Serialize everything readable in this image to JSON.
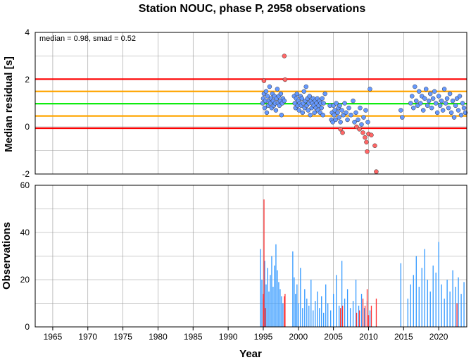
{
  "chart_data": [
    {
      "type": "scatter",
      "title": "Station NOUC, phase P, 2958 observations",
      "xlabel": "",
      "ylabel": "Median residual [s]",
      "xlim": [
        1962.5,
        2024
      ],
      "ylim": [
        -2,
        4
      ],
      "x_ticks": [
        1965,
        1970,
        1975,
        1980,
        1985,
        1990,
        1995,
        2000,
        2005,
        2010,
        2015,
        2020
      ],
      "y_ticks": [
        -2,
        0,
        2,
        4
      ],
      "grid": true,
      "annotation": "median = 0.98, smad = 0.52",
      "reference_lines": [
        {
          "y": 0.98,
          "color": "#00ee00"
        },
        {
          "y": 1.5,
          "color": "#ffa500"
        },
        {
          "y": 0.46,
          "color": "#ffa500"
        },
        {
          "y": 2.02,
          "color": "#ff0000"
        },
        {
          "y": -0.06,
          "color": "#ff0000"
        }
      ],
      "colors": {
        "inlier": "#6699ff",
        "outlier": "#ff6666"
      },
      "series": [
        {
          "points": [
            [
              1994.9,
              1.0
            ],
            [
              1995.0,
              1.2
            ],
            [
              1995.1,
              1.4
            ],
            [
              1995.2,
              0.8
            ],
            [
              1995.3,
              1.1
            ],
            [
              1995.4,
              1.5
            ],
            [
              1995.5,
              0.6
            ],
            [
              1995.6,
              1.3
            ],
            [
              1995.7,
              0.9
            ],
            [
              1995.8,
              1.1
            ],
            [
              1995.9,
              1.7
            ],
            [
              1996.0,
              1.0
            ],
            [
              1996.1,
              1.2
            ],
            [
              1996.2,
              0.8
            ],
            [
              1996.3,
              1.4
            ],
            [
              1996.4,
              1.1
            ],
            [
              1996.5,
              0.9
            ],
            [
              1996.6,
              1.3
            ],
            [
              1996.7,
              1.0
            ],
            [
              1996.8,
              0.7
            ],
            [
              1996.9,
              1.2
            ],
            [
              1997.0,
              1.6
            ],
            [
              1997.1,
              1.0
            ],
            [
              1997.2,
              1.3
            ],
            [
              1997.3,
              0.9
            ],
            [
              1997.4,
              1.1
            ],
            [
              1997.5,
              1.4
            ],
            [
              1997.6,
              0.5
            ],
            [
              1997.7,
              1.0
            ],
            [
              1997.8,
              1.2
            ],
            [
              1998.0,
              1.1
            ],
            [
              1999.4,
              1.3
            ],
            [
              1999.5,
              1.0
            ],
            [
              1999.6,
              0.8
            ],
            [
              1999.7,
              1.2
            ],
            [
              1999.8,
              1.4
            ],
            [
              1999.9,
              0.9
            ],
            [
              2000.0,
              1.1
            ],
            [
              2000.1,
              0.7
            ],
            [
              2000.2,
              1.0
            ],
            [
              2000.3,
              1.3
            ],
            [
              2000.4,
              0.9
            ],
            [
              2000.5,
              1.2
            ],
            [
              2000.6,
              0.6
            ],
            [
              2000.7,
              1.0
            ],
            [
              2000.8,
              1.5
            ],
            [
              2000.9,
              0.8
            ],
            [
              2001.0,
              1.1
            ],
            [
              2001.1,
              1.7
            ],
            [
              2001.2,
              0.9
            ],
            [
              2001.3,
              1.2
            ],
            [
              2001.4,
              0.7
            ],
            [
              2001.5,
              1.0
            ],
            [
              2001.6,
              1.3
            ],
            [
              2001.7,
              0.5
            ],
            [
              2001.8,
              1.1
            ],
            [
              2001.9,
              0.8
            ],
            [
              2002.0,
              1.0
            ],
            [
              2002.1,
              1.2
            ],
            [
              2002.2,
              0.9
            ],
            [
              2002.3,
              0.6
            ],
            [
              2002.4,
              1.1
            ],
            [
              2002.5,
              0.8
            ],
            [
              2002.6,
              1.0
            ],
            [
              2002.7,
              1.2
            ],
            [
              2002.8,
              0.7
            ],
            [
              2002.9,
              0.9
            ],
            [
              2003.0,
              1.1
            ],
            [
              2003.1,
              0.6
            ],
            [
              2003.2,
              1.0
            ],
            [
              2003.3,
              0.8
            ],
            [
              2003.4,
              1.2
            ],
            [
              2003.5,
              0.5
            ],
            [
              2003.6,
              1.0
            ],
            [
              2003.8,
              1.4
            ],
            [
              2004.5,
              0.9
            ],
            [
              2004.7,
              0.3
            ],
            [
              2004.8,
              0.6
            ],
            [
              2004.9,
              0.2
            ],
            [
              2005.0,
              0.9
            ],
            [
              2005.1,
              0.5
            ],
            [
              2005.2,
              0.7
            ],
            [
              2005.3,
              0.3
            ],
            [
              2005.4,
              1.0
            ],
            [
              2005.6,
              0.6
            ],
            [
              2005.7,
              0.8
            ],
            [
              2005.8,
              0.4
            ],
            [
              2005.9,
              0.9
            ],
            [
              2006.0,
              0.2
            ],
            [
              2006.2,
              0.7
            ],
            [
              2006.4,
              0.5
            ],
            [
              2006.6,
              1.0
            ],
            [
              2006.8,
              0.6
            ],
            [
              2007.0,
              0.3
            ],
            [
              2007.2,
              0.8
            ],
            [
              2007.5,
              0.5
            ],
            [
              2007.8,
              1.1
            ],
            [
              2008.0,
              0.2
            ],
            [
              2008.2,
              0.6
            ],
            [
              2008.5,
              0.3
            ],
            [
              2008.8,
              0.8
            ],
            [
              2009.0,
              0.1
            ],
            [
              2009.3,
              0.4
            ],
            [
              2009.6,
              0.7
            ],
            [
              2009.9,
              0.2
            ],
            [
              2010.2,
              1.6
            ],
            [
              2014.6,
              0.7
            ],
            [
              2014.8,
              0.4
            ],
            [
              2016.0,
              1.0
            ],
            [
              2016.2,
              1.3
            ],
            [
              2016.4,
              0.8
            ],
            [
              2016.6,
              1.7
            ],
            [
              2016.8,
              1.1
            ],
            [
              2017.0,
              0.9
            ],
            [
              2017.2,
              1.5
            ],
            [
              2017.4,
              1.0
            ],
            [
              2017.6,
              1.3
            ],
            [
              2017.8,
              0.7
            ],
            [
              2018.0,
              1.2
            ],
            [
              2018.2,
              1.6
            ],
            [
              2018.4,
              0.9
            ],
            [
              2018.6,
              1.1
            ],
            [
              2018.8,
              1.4
            ],
            [
              2019.0,
              0.8
            ],
            [
              2019.2,
              1.2
            ],
            [
              2019.4,
              1.5
            ],
            [
              2019.6,
              1.0
            ],
            [
              2019.8,
              0.6
            ],
            [
              2020.0,
              1.3
            ],
            [
              2020.2,
              0.9
            ],
            [
              2020.4,
              1.1
            ],
            [
              2020.6,
              0.7
            ],
            [
              2020.8,
              1.6
            ],
            [
              2021.0,
              1.0
            ],
            [
              2021.2,
              1.2
            ],
            [
              2021.4,
              0.8
            ],
            [
              2021.6,
              1.4
            ],
            [
              2021.8,
              0.6
            ],
            [
              2022.0,
              1.1
            ],
            [
              2022.2,
              0.4
            ],
            [
              2022.4,
              0.9
            ],
            [
              2022.6,
              1.2
            ],
            [
              2022.8,
              0.7
            ],
            [
              2023.0,
              1.3
            ],
            [
              2023.2,
              0.5
            ],
            [
              2023.4,
              1.0
            ],
            [
              2023.6,
              0.8
            ],
            [
              2023.8,
              0.6
            ]
          ]
        },
        {
          "points": [
            [
              1995.1,
              1.95
            ],
            [
              1998.0,
              3.0
            ],
            [
              1998.1,
              2.0
            ],
            [
              2006.0,
              -0.1
            ],
            [
              2006.3,
              -0.25
            ],
            [
              2008.3,
              0.0
            ],
            [
              2008.7,
              -0.1
            ],
            [
              2009.2,
              -0.25
            ],
            [
              2009.5,
              -0.45
            ],
            [
              2009.7,
              -0.65
            ],
            [
              2009.8,
              -1.05
            ],
            [
              2010.0,
              -0.3
            ],
            [
              2010.4,
              -0.35
            ],
            [
              2010.9,
              -0.8
            ],
            [
              2011.1,
              -1.9
            ]
          ]
        }
      ]
    },
    {
      "type": "bar",
      "title": "",
      "xlabel": "Year",
      "ylabel": "Observations",
      "xlim": [
        1962.5,
        2024
      ],
      "ylim": [
        0,
        60
      ],
      "x_ticks": [
        1965,
        1970,
        1975,
        1980,
        1985,
        1990,
        1995,
        2000,
        2005,
        2010,
        2015,
        2020
      ],
      "y_ticks": [
        0,
        20,
        40,
        60
      ],
      "grid": true,
      "colors": {
        "inlier": "#3399ff",
        "outlier": "#ff3333"
      },
      "series": [
        {
          "x": [
            1994.6,
            1994.8,
            1995.0,
            1995.2,
            1995.4,
            1995.6,
            1995.8,
            1996.0,
            1996.2,
            1996.4,
            1996.6,
            1996.8,
            1997.0,
            1997.2,
            1997.4,
            1997.6,
            1997.8,
            1999.2,
            1999.4,
            1999.6,
            1999.8,
            2000.0,
            2000.3,
            2000.6,
            2000.9,
            2001.2,
            2001.5,
            2001.8,
            2002.1,
            2002.4,
            2002.7,
            2003.0,
            2003.3,
            2003.6,
            2003.9,
            2004.2,
            2004.6,
            2005.0,
            2005.4,
            2005.8,
            2006.2,
            2006.6,
            2007.0,
            2007.4,
            2007.8,
            2008.2,
            2008.6,
            2009.0,
            2009.4,
            2009.8,
            2010.2,
            2014.6,
            2015.6,
            2016.0,
            2016.4,
            2016.8,
            2017.2,
            2017.6,
            2018.0,
            2018.4,
            2018.8,
            2019.2,
            2019.6,
            2020.0,
            2020.4,
            2020.8,
            2021.2,
            2021.6,
            2022.0,
            2022.4,
            2022.8,
            2023.2,
            2023.6
          ],
          "values": [
            33,
            20,
            12,
            28,
            18,
            25,
            15,
            22,
            30,
            17,
            26,
            35,
            24,
            19,
            16,
            13,
            10,
            32,
            21,
            14,
            18,
            10,
            25,
            8,
            16,
            12,
            9,
            20,
            7,
            11,
            15,
            8,
            13,
            6,
            18,
            10,
            7,
            14,
            22,
            9,
            28,
            12,
            16,
            8,
            11,
            20,
            9,
            14,
            8,
            11,
            7,
            27,
            12,
            18,
            22,
            30,
            17,
            25,
            33,
            20,
            15,
            26,
            23,
            36,
            18,
            12,
            20,
            15,
            24,
            17,
            21,
            14,
            19
          ]
        },
        {
          "x": [
            1995.0,
            1995.1,
            1995.3,
            1998.0,
            1998.1,
            2006.0,
            2006.3,
            2008.3,
            2008.7,
            2009.2,
            2009.5,
            2009.8,
            2010.0,
            2010.4,
            2011.1,
            2022.6
          ],
          "values": [
            14,
            54,
            8,
            13,
            14,
            8,
            9,
            6,
            7,
            12,
            9,
            16,
            5,
            9,
            12,
            10
          ]
        }
      ]
    }
  ]
}
